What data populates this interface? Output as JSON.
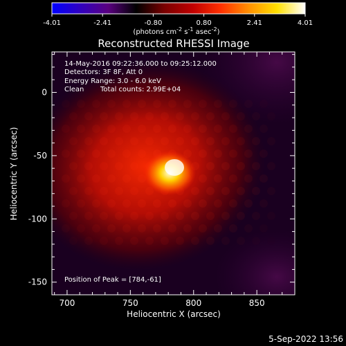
{
  "colorbar": {
    "ticks": [
      "-4.01",
      "-2.41",
      "-0.80",
      "0.80",
      "2.41",
      "4.01"
    ],
    "unit_main": "(photons cm",
    "unit_sup1": "-2",
    "unit_mid1": " s",
    "unit_sup2": "-1",
    "unit_mid2": " asec",
    "unit_sup3": "-2",
    "unit_end": ")",
    "colors": [
      "#0000ff",
      "#3000c0",
      "#5a0080",
      "#000000",
      "#7a0000",
      "#c00000",
      "#ff3000",
      "#ff9000",
      "#ffe000",
      "#ffffff"
    ]
  },
  "chart_data": {
    "type": "heatmap",
    "title": "Reconstructed RHESSI Image",
    "xlabel": "Heliocentric X (arcsec)",
    "ylabel": "Heliocentric Y (arcsec)",
    "xlim": [
      688,
      880
    ],
    "ylim": [
      -160,
      32
    ],
    "x_ticks": [
      700,
      750,
      800,
      850
    ],
    "y_ticks": [
      0,
      -50,
      -100,
      -150
    ],
    "peak": [
      784,
      -61
    ],
    "annotations": {
      "time": "14-May-2016 09:22:36.000 to 09:25:12.000",
      "detectors": "Detectors: 3F 8F, Att 0",
      "energy": "Energy Range: 3.0 - 6.0 keV",
      "clean": "Clean",
      "counts": "Total counts: 2.99E+04",
      "peak_text": "Position of Peak = [784,-61]"
    }
  },
  "footer": {
    "date": "5-Sep-2022 13:56"
  }
}
